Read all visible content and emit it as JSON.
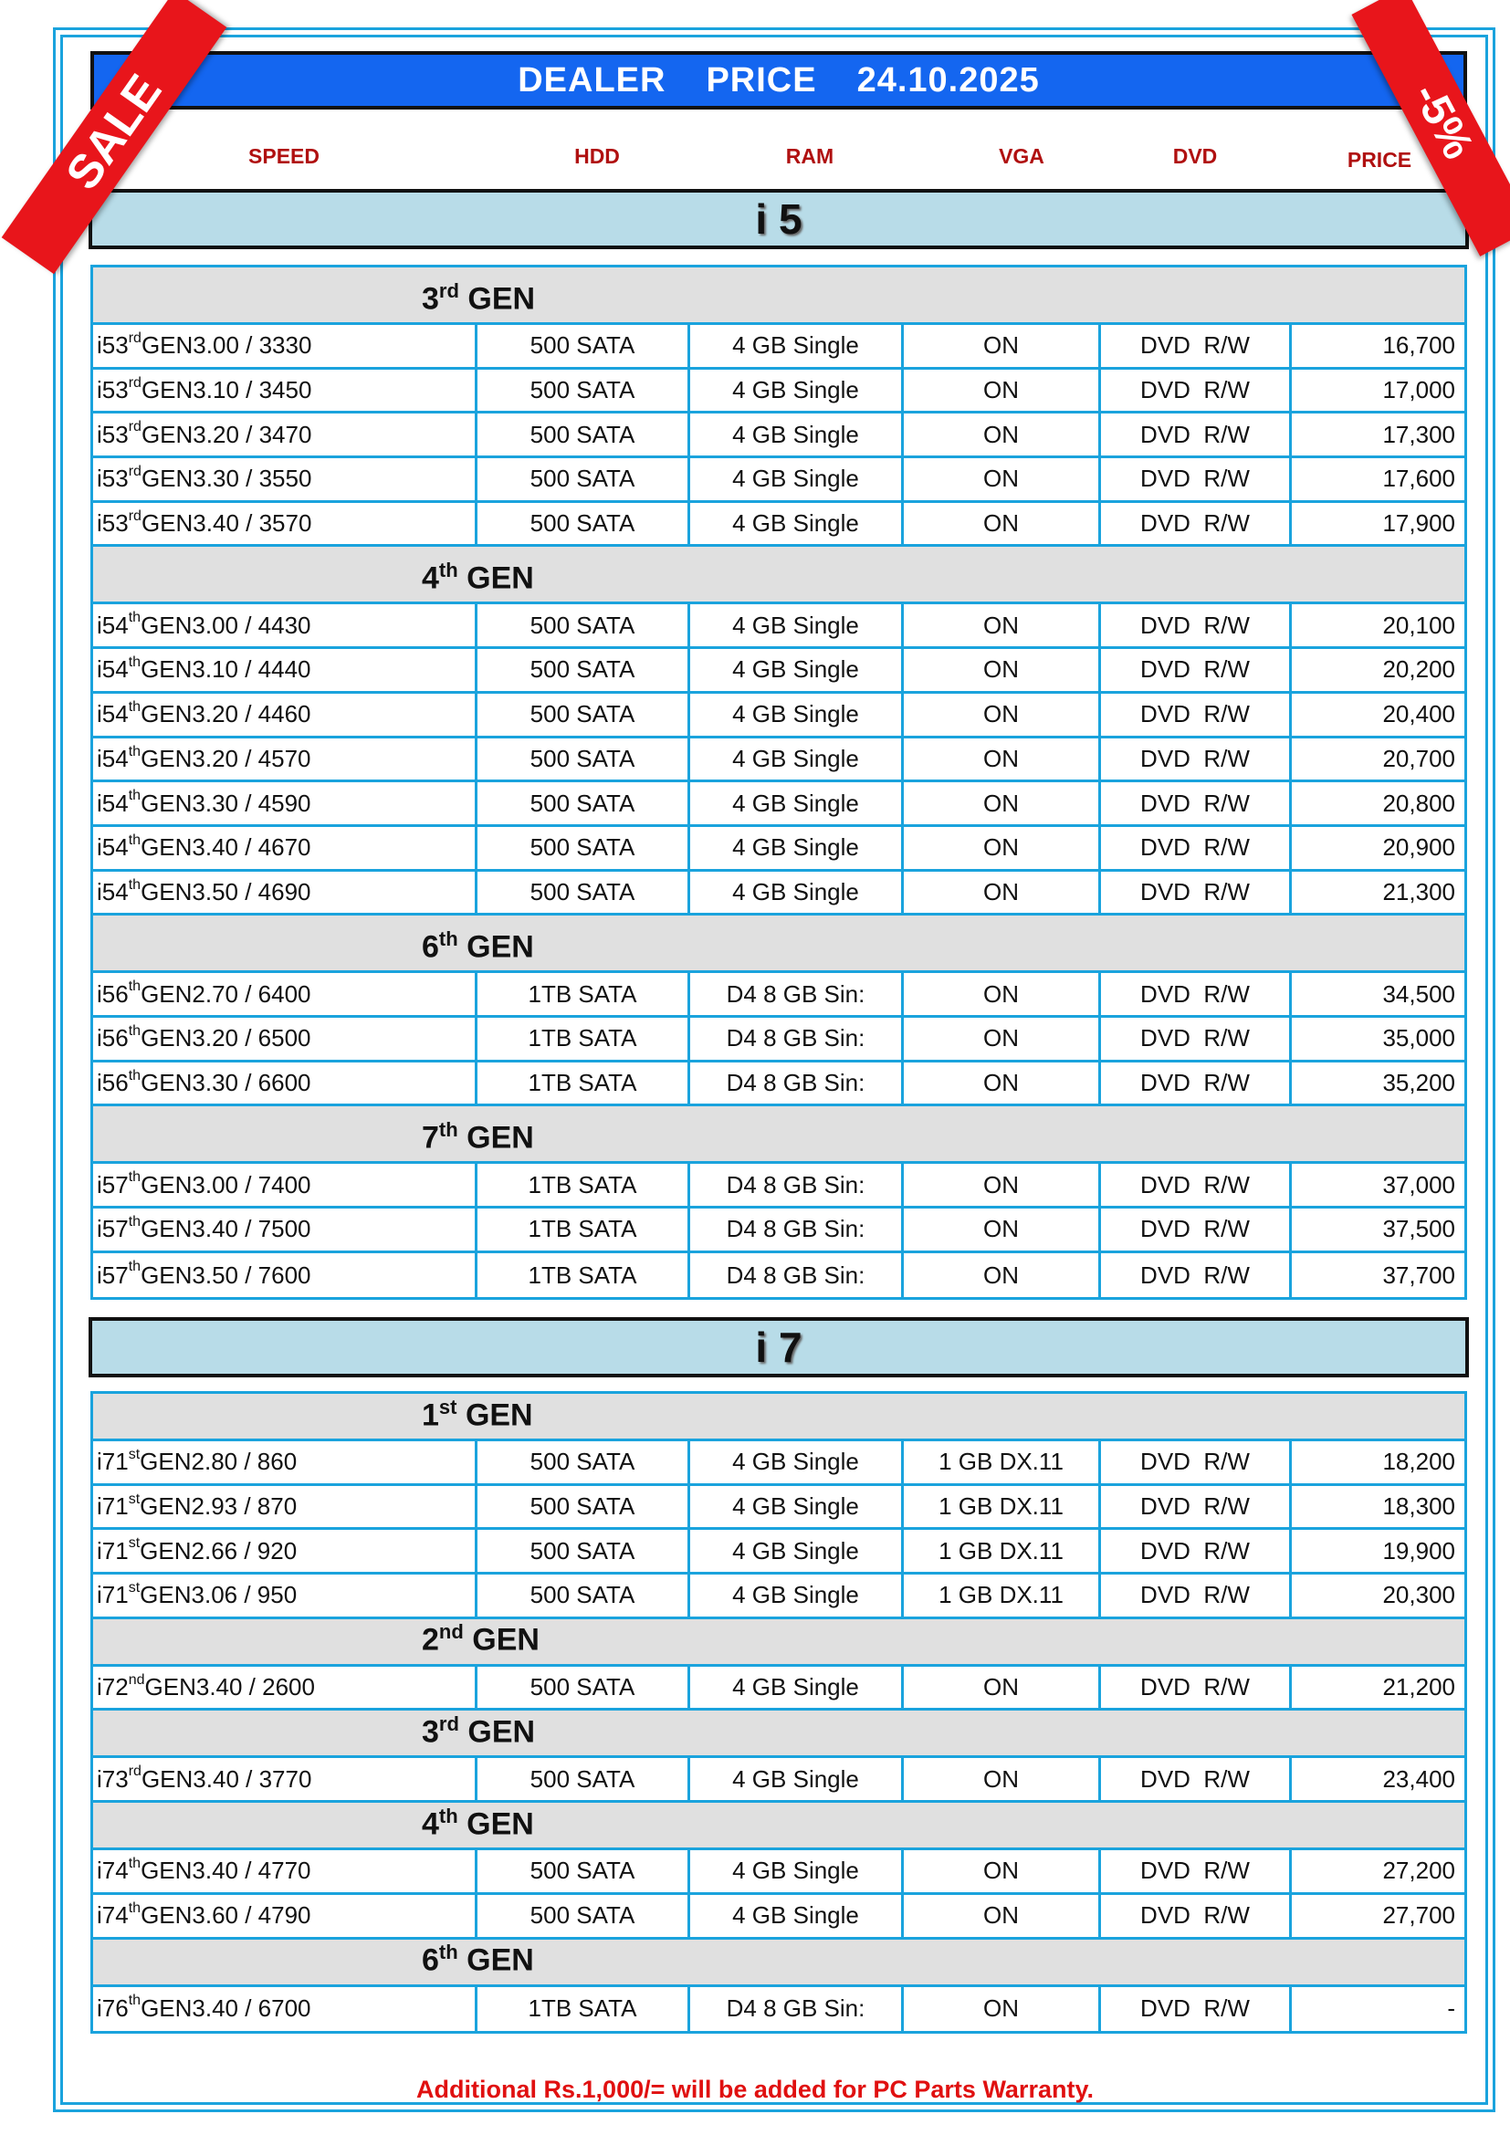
{
  "header": {
    "title_left": "DEALER",
    "title_mid": "PRICE",
    "date": "24.10.2025"
  },
  "ribbons": {
    "left": "SALE",
    "right": "-5%"
  },
  "colors": {
    "header_blue": "#1466f0",
    "border_cyan": "#1aa3dd",
    "cpu_bar": "#b8dce8",
    "gen_bar": "#e0e0e0",
    "label_red": "#b01010",
    "ribbon_red": "#e8151b"
  },
  "columns": [
    "SPEED",
    "HDD",
    "RAM",
    "VGA",
    "DVD",
    "PRICE"
  ],
  "gen_label": "GEN",
  "sections": [
    {
      "title": "i 5",
      "model": "i5",
      "gens": [
        {
          "num": "3",
          "sup": "rd",
          "rows": [
            {
              "speed": "3.00 / 3330",
              "hdd": "500 SATA",
              "ram": "4 GB Single",
              "vga": "ON",
              "dvd": "DVD  R/W",
              "price": "16,700"
            },
            {
              "speed": "3.10 / 3450",
              "hdd": "500 SATA",
              "ram": "4 GB Single",
              "vga": "ON",
              "dvd": "DVD  R/W",
              "price": "17,000"
            },
            {
              "speed": "3.20 / 3470",
              "hdd": "500 SATA",
              "ram": "4 GB Single",
              "vga": "ON",
              "dvd": "DVD  R/W",
              "price": "17,300"
            },
            {
              "speed": "3.30 / 3550",
              "hdd": "500 SATA",
              "ram": "4 GB Single",
              "vga": "ON",
              "dvd": "DVD  R/W",
              "price": "17,600"
            },
            {
              "speed": "3.40 / 3570",
              "hdd": "500 SATA",
              "ram": "4 GB Single",
              "vga": "ON",
              "dvd": "DVD  R/W",
              "price": "17,900"
            }
          ]
        },
        {
          "num": "4",
          "sup": "th",
          "rows": [
            {
              "speed": "3.00 / 4430",
              "hdd": "500 SATA",
              "ram": "4 GB Single",
              "vga": "ON",
              "dvd": "DVD  R/W",
              "price": "20,100"
            },
            {
              "speed": "3.10 / 4440",
              "hdd": "500 SATA",
              "ram": "4 GB Single",
              "vga": "ON",
              "dvd": "DVD  R/W",
              "price": "20,200"
            },
            {
              "speed": "3.20 / 4460",
              "hdd": "500 SATA",
              "ram": "4 GB Single",
              "vga": "ON",
              "dvd": "DVD  R/W",
              "price": "20,400"
            },
            {
              "speed": "3.20 / 4570",
              "hdd": "500 SATA",
              "ram": "4 GB Single",
              "vga": "ON",
              "dvd": "DVD  R/W",
              "price": "20,700"
            },
            {
              "speed": "3.30 / 4590",
              "hdd": "500 SATA",
              "ram": "4 GB Single",
              "vga": "ON",
              "dvd": "DVD  R/W",
              "price": "20,800"
            },
            {
              "speed": "3.40 / 4670",
              "hdd": "500 SATA",
              "ram": "4 GB Single",
              "vga": "ON",
              "dvd": "DVD  R/W",
              "price": "20,900"
            },
            {
              "speed": "3.50 / 4690",
              "hdd": "500 SATA",
              "ram": "4 GB Single",
              "vga": "ON",
              "dvd": "DVD  R/W",
              "price": "21,300"
            }
          ]
        },
        {
          "num": "6",
          "sup": "th",
          "rows": [
            {
              "speed": "2.70 / 6400",
              "hdd": "1TB SATA",
              "ram": "D4 8 GB Sin:",
              "vga": "ON",
              "dvd": "DVD  R/W",
              "price": "34,500"
            },
            {
              "speed": "3.20 / 6500",
              "hdd": "1TB SATA",
              "ram": "D4 8 GB Sin:",
              "vga": "ON",
              "dvd": "DVD  R/W",
              "price": "35,000"
            },
            {
              "speed": "3.30 / 6600",
              "hdd": "1TB SATA",
              "ram": "D4 8 GB Sin:",
              "vga": "ON",
              "dvd": "DVD  R/W",
              "price": "35,200"
            }
          ]
        },
        {
          "num": "7",
          "sup": "th",
          "rows": [
            {
              "speed": "3.00 / 7400",
              "hdd": "1TB SATA",
              "ram": "D4 8 GB Sin:",
              "vga": "ON",
              "dvd": "DVD  R/W",
              "price": "37,000"
            },
            {
              "speed": "3.40 / 7500",
              "hdd": "1TB SATA",
              "ram": "D4 8 GB Sin:",
              "vga": "ON",
              "dvd": "DVD  R/W",
              "price": "37,500"
            },
            {
              "speed": "3.50 / 7600",
              "hdd": "1TB SATA",
              "ram": "D4 8 GB Sin:",
              "vga": "ON",
              "dvd": "DVD  R/W",
              "price": "37,700"
            }
          ]
        }
      ]
    },
    {
      "title": "i 7",
      "model": "i7",
      "gens": [
        {
          "num": "1",
          "sup": "st",
          "rows": [
            {
              "speed": "2.80 / 860",
              "hdd": "500 SATA",
              "ram": "4 GB Single",
              "vga": "1 GB DX.11",
              "dvd": "DVD  R/W",
              "price": "18,200"
            },
            {
              "speed": "2.93 / 870",
              "hdd": "500 SATA",
              "ram": "4 GB Single",
              "vga": "1 GB DX.11",
              "dvd": "DVD  R/W",
              "price": "18,300"
            },
            {
              "speed": "2.66 / 920",
              "hdd": "500 SATA",
              "ram": "4 GB Single",
              "vga": "1 GB DX.11",
              "dvd": "DVD  R/W",
              "price": "19,900"
            },
            {
              "speed": "3.06 / 950",
              "hdd": "500 SATA",
              "ram": "4 GB Single",
              "vga": "1 GB DX.11",
              "dvd": "DVD  R/W",
              "price": "20,300"
            }
          ]
        },
        {
          "num": "2",
          "sup": "nd",
          "rows": [
            {
              "speed": "3.40 / 2600",
              "hdd": "500 SATA",
              "ram": "4 GB Single",
              "vga": "ON",
              "dvd": "DVD  R/W",
              "price": "21,200"
            }
          ]
        },
        {
          "num": "3",
          "sup": "rd",
          "rows": [
            {
              "speed": "3.40 / 3770",
              "hdd": "500 SATA",
              "ram": "4 GB Single",
              "vga": "ON",
              "dvd": "DVD  R/W",
              "price": "23,400"
            }
          ]
        },
        {
          "num": "4",
          "sup": "th",
          "rows": [
            {
              "speed": "3.40 / 4770",
              "hdd": "500 SATA",
              "ram": "4 GB Single",
              "vga": "ON",
              "dvd": "DVD  R/W",
              "price": "27,200"
            },
            {
              "speed": "3.60 / 4790",
              "hdd": "500 SATA",
              "ram": "4 GB Single",
              "vga": "ON",
              "dvd": "DVD  R/W",
              "price": "27,700"
            }
          ]
        },
        {
          "num": "6",
          "sup": "th",
          "rows": [
            {
              "speed": "3.40 / 6700",
              "hdd": "1TB SATA",
              "ram": "D4 8 GB Sin:",
              "vga": "ON",
              "dvd": "DVD  R/W",
              "price": "-"
            }
          ]
        }
      ]
    }
  ],
  "footer": "Additional Rs.1,000/= will be added for PC Parts Warranty."
}
